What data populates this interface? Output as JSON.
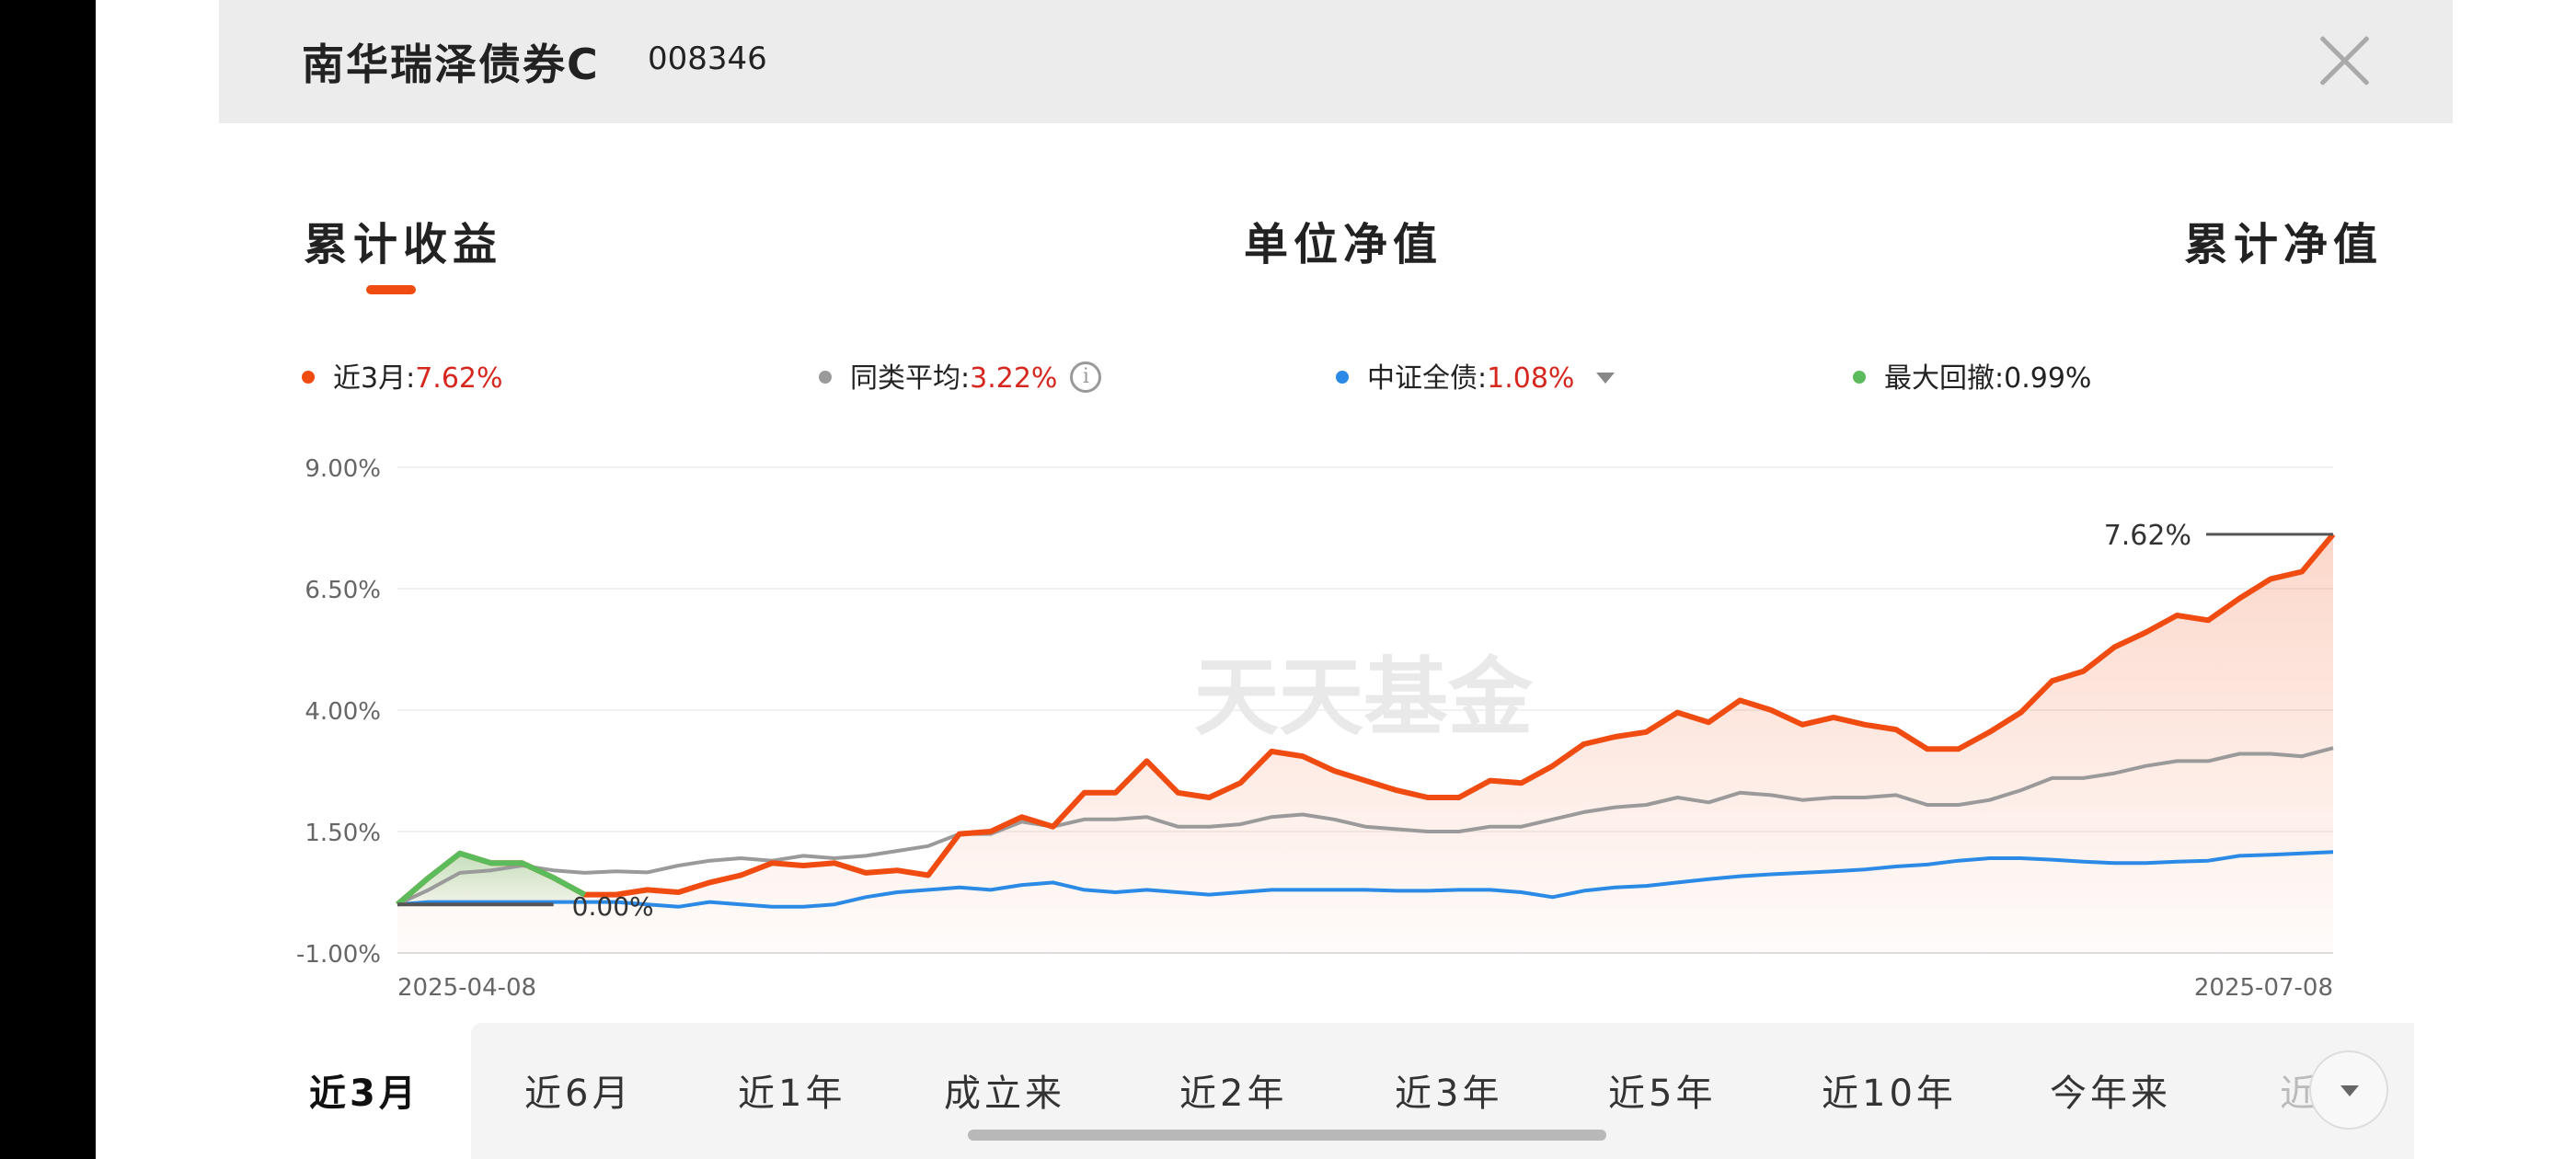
{
  "header": {
    "fund_name": "南华瑞泽债券C",
    "fund_code": "008346"
  },
  "tabs": [
    {
      "label": "累计收益",
      "active": true
    },
    {
      "label": "单位净值",
      "active": false
    },
    {
      "label": "累计净值",
      "active": false
    }
  ],
  "legend": {
    "fund": {
      "label": "近3月:",
      "value": "7.62%",
      "color": "#f04b10"
    },
    "peer": {
      "label": "同类平均:",
      "value": "3.22%",
      "color": "#9a9a9a",
      "info_icon": "i"
    },
    "index": {
      "label": "中证全债:",
      "value": "1.08%",
      "color": "#2a8ae6"
    },
    "drawdown": {
      "label": "最大回撤:",
      "value": "0.99%",
      "color": "#5cbc5c"
    }
  },
  "watermark": "天天基金",
  "chart_data": {
    "type": "line",
    "y_tick_labels": [
      "9.00%",
      "6.50%",
      "4.00%",
      "1.50%",
      "-1.00%"
    ],
    "ylim": [
      -1.0,
      9.0
    ],
    "x_start_label": "2025-04-08",
    "x_end_label": "2025-07-08",
    "end_annotation": "7.62%",
    "drawdown_annotation": "0.00%",
    "series": [
      {
        "name": "近3月",
        "color": "#f04b10",
        "fill": true,
        "values": [
          0.0,
          0.55,
          1.05,
          0.85,
          0.85,
          0.55,
          0.2,
          0.2,
          0.3,
          0.25,
          0.45,
          0.6,
          0.85,
          0.8,
          0.85,
          0.65,
          0.7,
          0.6,
          1.45,
          1.5,
          1.8,
          1.6,
          2.3,
          2.3,
          2.95,
          2.3,
          2.2,
          2.5,
          3.15,
          3.05,
          2.75,
          2.55,
          2.35,
          2.2,
          2.2,
          2.55,
          2.5,
          2.85,
          3.3,
          3.45,
          3.55,
          3.95,
          3.75,
          4.2,
          4.0,
          3.7,
          3.85,
          3.7,
          3.6,
          3.2,
          3.2,
          3.55,
          3.95,
          4.6,
          4.8,
          5.3,
          5.6,
          5.95,
          5.85,
          6.3,
          6.7,
          6.85,
          7.62
        ]
      },
      {
        "name": "同类平均",
        "color": "#9a9a9a",
        "values": [
          0.0,
          0.3,
          0.65,
          0.7,
          0.8,
          0.7,
          0.65,
          0.68,
          0.66,
          0.8,
          0.9,
          0.95,
          0.9,
          1.0,
          0.95,
          1.0,
          1.1,
          1.2,
          1.45,
          1.45,
          1.7,
          1.6,
          1.75,
          1.75,
          1.8,
          1.6,
          1.6,
          1.65,
          1.8,
          1.85,
          1.75,
          1.6,
          1.55,
          1.5,
          1.5,
          1.6,
          1.6,
          1.75,
          1.9,
          2.0,
          2.05,
          2.2,
          2.1,
          2.3,
          2.25,
          2.15,
          2.2,
          2.2,
          2.25,
          2.05,
          2.05,
          2.15,
          2.35,
          2.6,
          2.6,
          2.7,
          2.85,
          2.95,
          2.95,
          3.1,
          3.1,
          3.05,
          3.22
        ]
      },
      {
        "name": "中证全债",
        "color": "#2a8ae6",
        "values": [
          0.0,
          0.05,
          0.05,
          0.05,
          0.05,
          0.05,
          0.05,
          0.05,
          0.0,
          -0.05,
          0.05,
          0.0,
          -0.05,
          -0.05,
          0.0,
          0.15,
          0.25,
          0.3,
          0.35,
          0.3,
          0.4,
          0.45,
          0.3,
          0.25,
          0.3,
          0.25,
          0.2,
          0.25,
          0.3,
          0.3,
          0.3,
          0.3,
          0.28,
          0.28,
          0.3,
          0.3,
          0.25,
          0.15,
          0.28,
          0.35,
          0.38,
          0.45,
          0.52,
          0.58,
          0.62,
          0.65,
          0.68,
          0.72,
          0.78,
          0.82,
          0.9,
          0.95,
          0.95,
          0.92,
          0.88,
          0.85,
          0.85,
          0.88,
          0.9,
          1.0,
          1.02,
          1.05,
          1.08
        ]
      },
      {
        "name": "最大回撤",
        "color": "#5cbc5c",
        "values": [
          0.0,
          0.55,
          1.05,
          0.85,
          0.85,
          0.55,
          0.2
        ]
      }
    ],
    "baseline": {
      "color": "#555555",
      "value": 0.0
    },
    "grid": true
  },
  "periods": [
    {
      "label": "近3月",
      "active": true
    },
    {
      "label": "近6月",
      "active": false
    },
    {
      "label": "近1年",
      "active": false
    },
    {
      "label": "成立来",
      "active": false
    },
    {
      "label": "近2年",
      "active": false
    },
    {
      "label": "近3年",
      "active": false
    },
    {
      "label": "近5年",
      "active": false
    },
    {
      "label": "近10年",
      "active": false
    },
    {
      "label": "今年来",
      "active": false
    },
    {
      "label": "近",
      "active": false
    }
  ]
}
